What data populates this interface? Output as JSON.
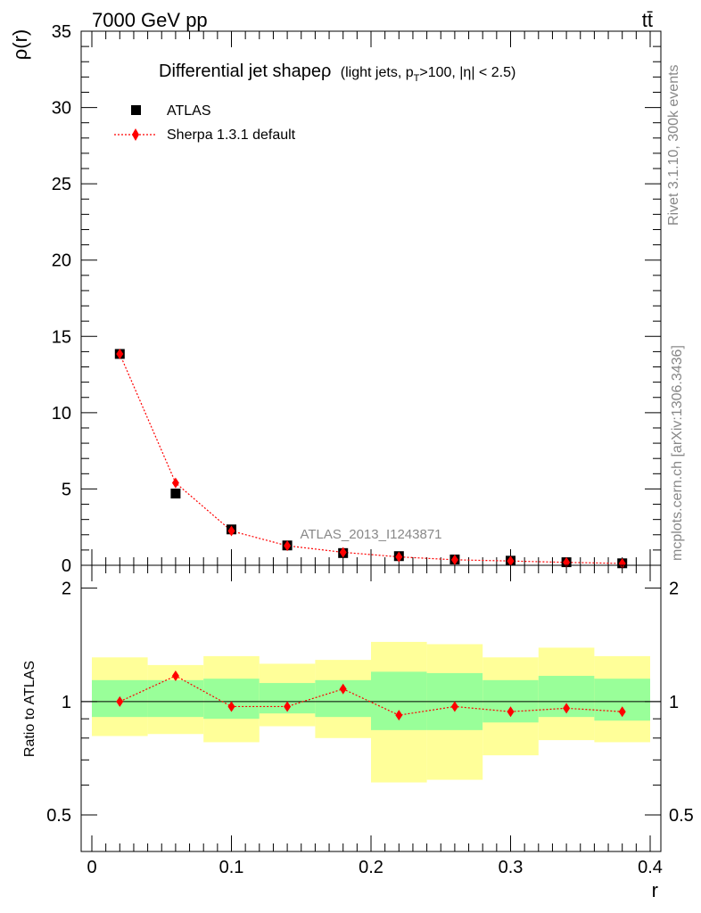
{
  "header": {
    "energy_label": "7000 GeV pp",
    "process_label": "tt̄",
    "rivet_label": "Rivet 3.1.10,  300k events",
    "mcplots_label": "mcplots.cern.ch [arXiv:1306.3436]",
    "analysis_label": "ATLAS_2013_I1243871"
  },
  "title": {
    "main": "Differential jet shapeρ",
    "sub_prefix": "(light jets, p",
    "sub_sub": "T",
    "sub_suffix": ">100, |η| < 2.5)"
  },
  "legend": {
    "data_label": "ATLAS",
    "mc_label": "Sherpa 1.3.1 default"
  },
  "colors": {
    "data": "#000000",
    "mc": "#ff0000",
    "band_inner": "#99ff99",
    "band_outer": "#ffff99"
  },
  "chart_data": [
    {
      "type": "scatter",
      "ylabel": "ρ(r)",
      "xlim": [
        0,
        0.4
      ],
      "ylim": [
        0,
        35
      ],
      "yticks": [
        0,
        5,
        10,
        15,
        20,
        25,
        30,
        35
      ],
      "x": [
        0.02,
        0.06,
        0.1,
        0.14,
        0.18,
        0.22,
        0.26,
        0.3,
        0.34,
        0.38
      ],
      "series": [
        {
          "name": "ATLAS",
          "values": [
            13.85,
            4.7,
            2.35,
            1.3,
            0.8,
            0.6,
            0.38,
            0.3,
            0.2,
            0.13
          ]
        },
        {
          "name": "Sherpa 1.3.1 default",
          "values": [
            13.85,
            5.4,
            2.25,
            1.28,
            0.85,
            0.55,
            0.36,
            0.28,
            0.19,
            0.12
          ]
        }
      ]
    },
    {
      "type": "line",
      "ylabel": "Ratio to ATLAS",
      "xlabel": "r",
      "xlim": [
        0,
        0.4
      ],
      "ylim": [
        0.4,
        2.3
      ],
      "yticks": [
        0.5,
        1,
        2
      ],
      "xticks": [
        0,
        0.1,
        0.2,
        0.3,
        0.4
      ],
      "reference": 1,
      "bins": [
        0.0,
        0.04,
        0.08,
        0.12,
        0.16,
        0.2,
        0.24,
        0.28,
        0.32,
        0.36,
        0.4
      ],
      "band_inner": [
        [
          0.91,
          1.14
        ],
        [
          0.91,
          1.14
        ],
        [
          0.9,
          1.15
        ],
        [
          0.93,
          1.12
        ],
        [
          0.91,
          1.14
        ],
        [
          0.84,
          1.2
        ],
        [
          0.84,
          1.19
        ],
        [
          0.88,
          1.14
        ],
        [
          0.91,
          1.17
        ],
        [
          0.89,
          1.15
        ]
      ],
      "band_outer": [
        [
          0.81,
          1.31
        ],
        [
          0.82,
          1.25
        ],
        [
          0.78,
          1.32
        ],
        [
          0.86,
          1.26
        ],
        [
          0.8,
          1.29
        ],
        [
          0.61,
          1.44
        ],
        [
          0.62,
          1.42
        ],
        [
          0.72,
          1.31
        ],
        [
          0.79,
          1.39
        ],
        [
          0.78,
          1.32
        ]
      ],
      "x": [
        0.02,
        0.06,
        0.1,
        0.14,
        0.18,
        0.22,
        0.26,
        0.3,
        0.34,
        0.38
      ],
      "series": [
        {
          "name": "Sherpa 1.3.1 default",
          "values": [
            1.0,
            1.17,
            0.97,
            0.97,
            1.08,
            0.92,
            0.97,
            0.94,
            0.96,
            0.94
          ]
        }
      ]
    }
  ]
}
